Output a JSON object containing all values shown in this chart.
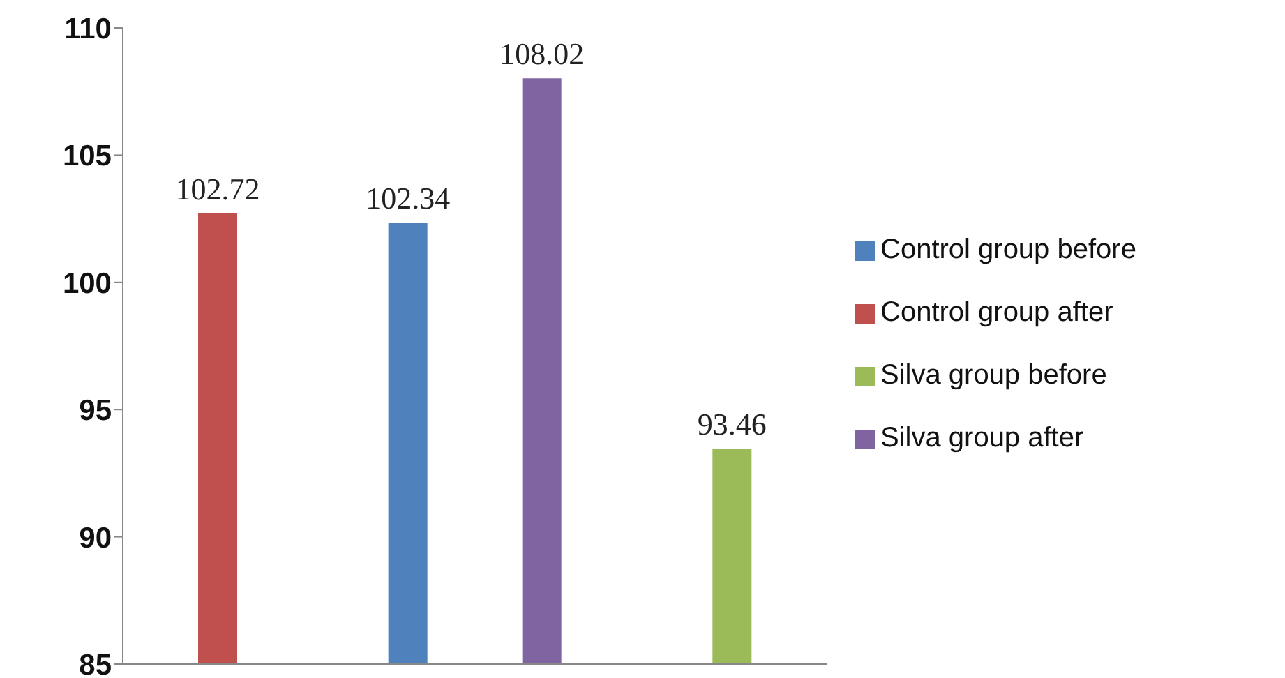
{
  "chart_data": {
    "type": "bar",
    "categories": [
      null,
      null,
      null
    ],
    "series": [
      {
        "name": "Control group before",
        "color": "#4f81bd",
        "values": [
          null,
          102.34,
          null
        ]
      },
      {
        "name": "Control group after",
        "color": "#c0504d",
        "values": [
          102.72,
          null,
          null
        ]
      },
      {
        "name": "Silva group before",
        "color": "#9bbb59",
        "values": [
          null,
          null,
          93.46
        ]
      },
      {
        "name": "Silva group after",
        "color": "#8064a2",
        "values": [
          null,
          108.02,
          null
        ]
      }
    ],
    "ylim": [
      85,
      110
    ],
    "yticks": [
      85,
      90,
      95,
      100,
      105,
      110
    ],
    "grid": false,
    "legend": "right",
    "data_labels": true
  }
}
